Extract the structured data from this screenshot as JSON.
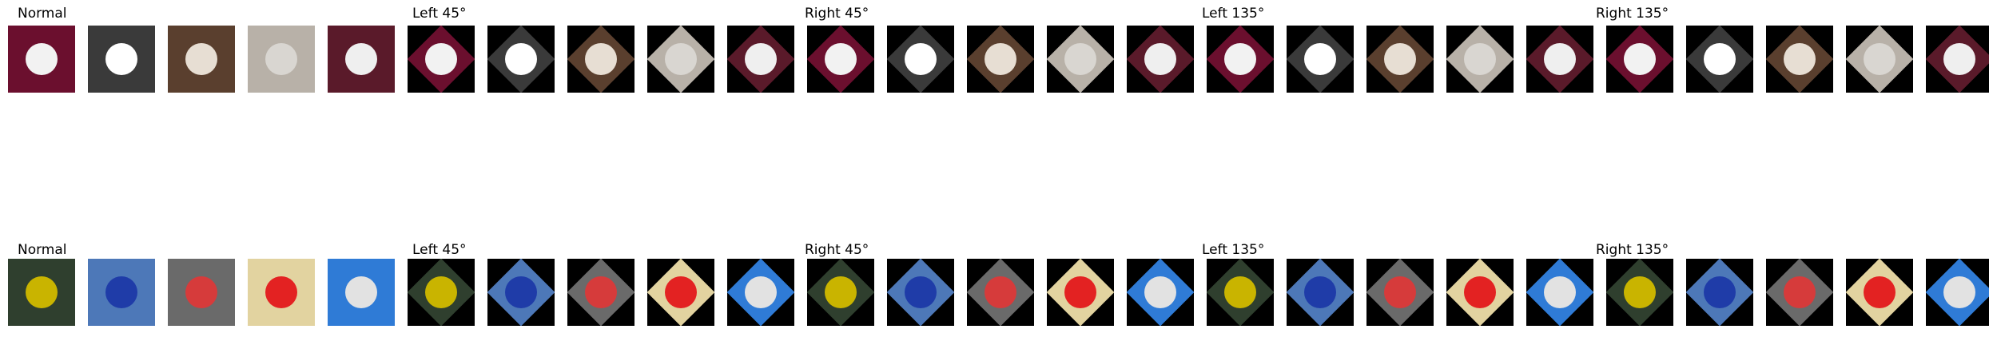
{
  "colors": {
    "dog_bg": [
      "#6b0f2e",
      "#3a3a3a",
      "#5a3f2e",
      "#b8b1a8",
      "#5a1a2a"
    ],
    "dog_subject": [
      "#f2f2f2",
      "#ffffff",
      "#e7ded3",
      "#d9d6d1",
      "#efefef"
    ],
    "car_bg": [
      "#2f3f2e",
      "#4d78b8",
      "#6a6a6a",
      "#e2d3a0",
      "#2f7bd6"
    ],
    "car_subject": [
      "#c9b400",
      "#1f3ca8",
      "#d63b3b",
      "#e32222",
      "#e2e2e2"
    ]
  },
  "rows": [
    {
      "name": "dog-row",
      "labels": [
        "Normal",
        "Left 45°",
        "Right 45°",
        "Left 135°",
        "Right 135°"
      ],
      "tiles_count": 25
    },
    {
      "name": "car-row",
      "labels": [
        "Normal",
        "Left 45°",
        "Right 45°",
        "Left 135°",
        "Right 135°"
      ],
      "tiles_count": 25
    }
  ]
}
